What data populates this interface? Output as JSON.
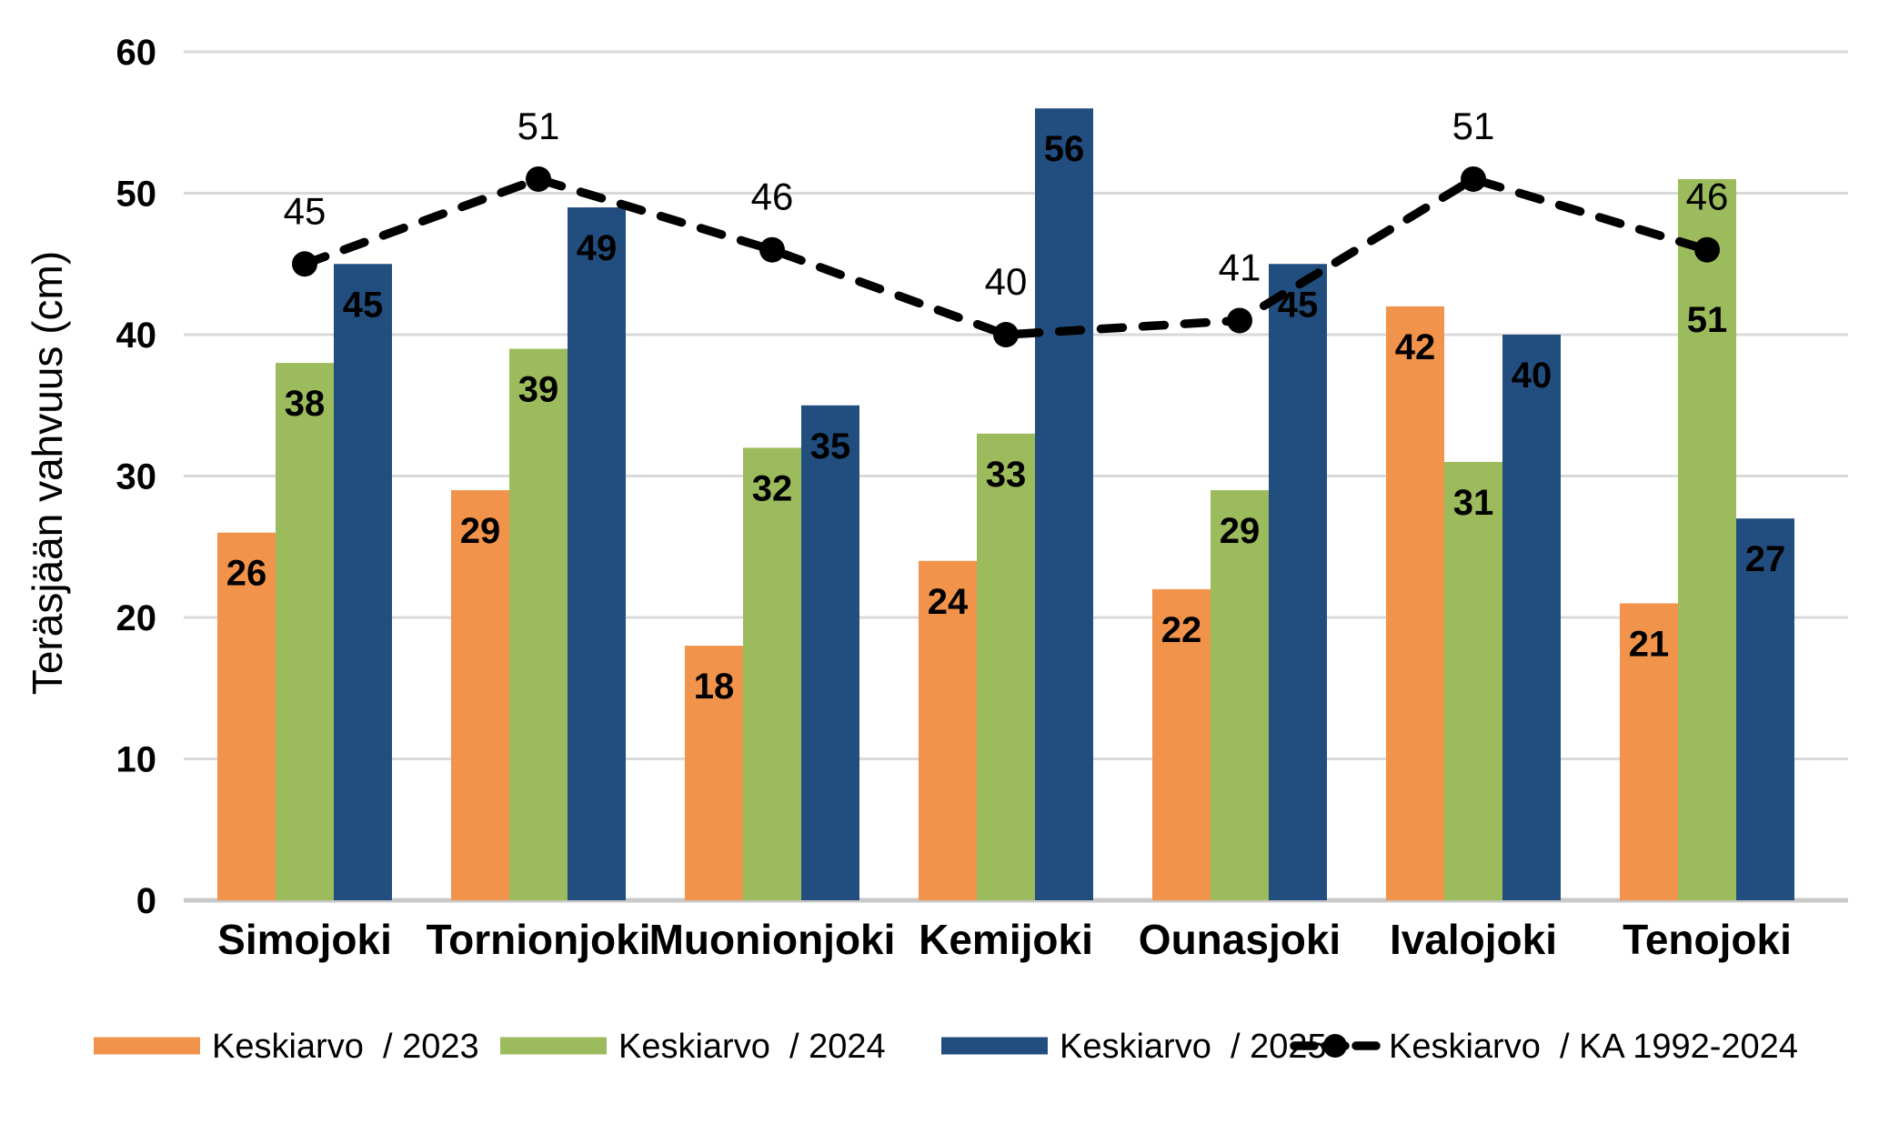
{
  "chart_data": {
    "type": "bar",
    "title": "",
    "xlabel": "",
    "ylabel": "Teräsjään vahvuus (cm)",
    "ylim": [
      0,
      60
    ],
    "yticks": [
      0,
      10,
      20,
      30,
      40,
      50,
      60
    ],
    "grid": true,
    "legend_position": "bottom",
    "categories": [
      "Simojoki",
      "Tornionjoki",
      "Muonionjoki",
      "Kemijoki",
      "Ounasjoki",
      "Ivalojoki",
      "Tenojoki"
    ],
    "series": [
      {
        "name": "Keskiarvo  / 2023",
        "type": "bar",
        "color": "#F2934B",
        "label_color": "#000000",
        "values": [
          26,
          29,
          18,
          24,
          22,
          42,
          21
        ]
      },
      {
        "name": "Keskiarvo  / 2024",
        "type": "bar",
        "color": "#9CBB5C",
        "label_color": "#000000",
        "values": [
          38,
          39,
          32,
          33,
          29,
          31,
          51
        ],
        "label_extra_dy": [
          0,
          0,
          0,
          0,
          0,
          0,
          110
        ]
      },
      {
        "name": "Keskiarvo  / 2025",
        "type": "bar",
        "color": "#224E7F",
        "label_color": "#FFFFFF",
        "values": [
          45,
          49,
          35,
          56,
          45,
          40,
          27
        ]
      },
      {
        "name": "Keskiarvo  / KA 1992-2024",
        "type": "line",
        "color": "#000000",
        "dashed": true,
        "marker": "circle",
        "label_color": "#000000",
        "values": [
          45,
          51,
          46,
          40,
          41,
          51,
          46
        ]
      }
    ],
    "colors": {
      "gridline": "#D9D9D9",
      "axis_line": "#C9C9C9",
      "background": "#FFFFFF",
      "text": "#000000"
    }
  }
}
